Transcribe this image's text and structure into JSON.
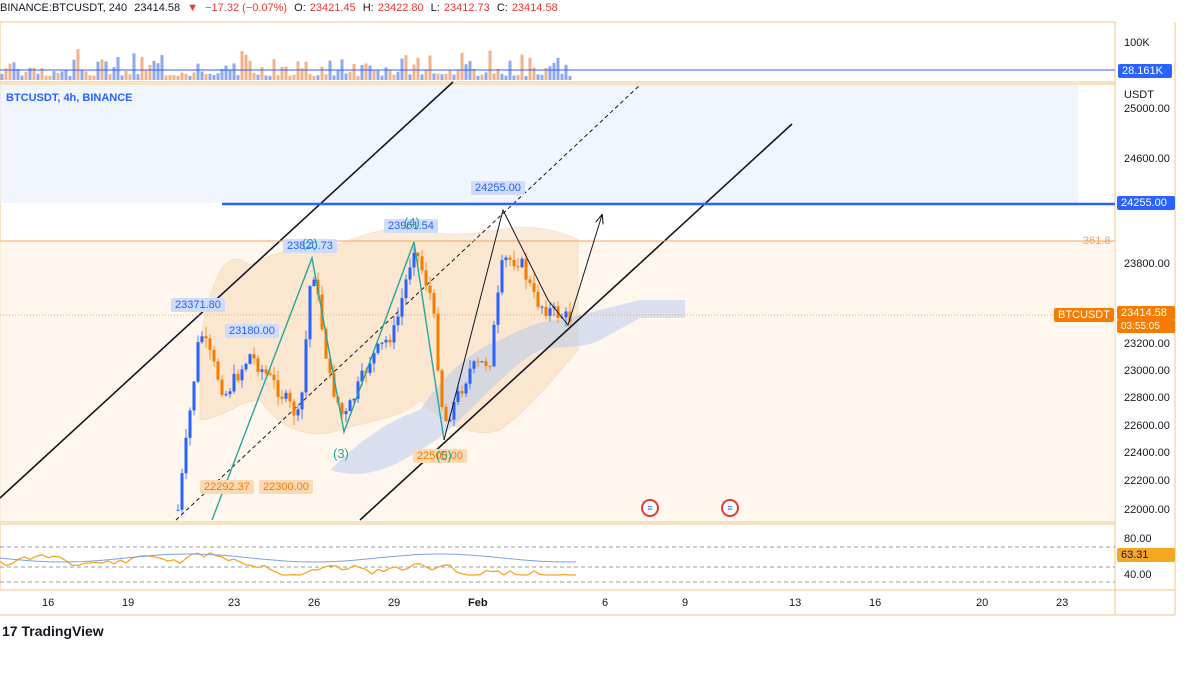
{
  "header": {
    "symbol": "BINANCE:BTCUSDT, 240",
    "price": "23414.58",
    "change_icon": "down-triangle-icon",
    "change": "−17.32 (−0.07%)",
    "o_label": "O:",
    "o_value": "23421.45",
    "h_label": "H:",
    "h_value": "23422.80",
    "l_label": "L:",
    "l_value": "23412.73",
    "c_label": "C:",
    "c_value": "23414.58"
  },
  "volume_pane": {
    "axis_label": "100K",
    "current": "28.161K"
  },
  "main_pane": {
    "legend": "BTCUSDT, 4h, BINANCE",
    "currency": "USDT",
    "price_ticks": [
      "25000.00",
      "24600.00",
      "24200.00",
      "23800.00",
      "23200.00",
      "23000.00",
      "22800.00",
      "22600.00",
      "22400.00",
      "22200.00",
      "22000.00"
    ],
    "resistance_label": "24255.00",
    "fib_label": "361.8",
    "symbol_tag": "BTCUSDT",
    "last_price": "23414.58",
    "countdown": "03:55:05",
    "annotations": {
      "high_b": "24255.00",
      "peak_2": "23820.73",
      "peak_4": "23961.54",
      "peak_1": "23371.80",
      "level_23180": "23180.00",
      "low_1": "22292.37",
      "low_2": "22300.00",
      "low_5": "22500.00",
      "wave_2": "(2)",
      "wave_3": "(3)",
      "wave_4": "(4)",
      "wave_5": "(5)"
    },
    "event_icons": [
      "us-flag-event-icon",
      "us-flag-event-icon"
    ]
  },
  "rsi_pane": {
    "ticks": [
      "80.00",
      "40.00"
    ],
    "value": "63.31"
  },
  "x_axis": {
    "labels": [
      "16",
      "19",
      "23",
      "26",
      "29",
      "Feb",
      "6",
      "9",
      "13",
      "16",
      "20",
      "23"
    ]
  },
  "brand": "TradingView",
  "colors": {
    "blue": "#2962ff",
    "orange": "#f7a35c",
    "up": "#2962ff",
    "down": "#f57c00",
    "rsi": "#f5a623"
  },
  "chart_data": {
    "type": "candlestick",
    "title": "BTCUSDT, 4h, BINANCE",
    "ylabel": "USDT",
    "ylim": [
      21900,
      25100
    ],
    "x": [
      "Jan 16",
      "Jan 19",
      "Jan 23",
      "Jan 26",
      "Jan 29",
      "Feb",
      "Feb 6",
      "Feb 9",
      "Feb 13",
      "Feb 16",
      "Feb 20",
      "Feb 23"
    ],
    "horizontal_levels": [
      24255.0,
      23960.0,
      23414.58
    ],
    "wave_points": [
      {
        "label": "(2)",
        "price": 23820.73
      },
      {
        "label": "(3)",
        "price": 22540
      },
      {
        "label": "(4)",
        "price": 23961.54
      },
      {
        "label": "(5)",
        "price": 22500.0
      }
    ],
    "series": [
      {
        "name": "RSI",
        "last": 63.31,
        "levels": [
          80,
          40
        ]
      },
      {
        "name": "Volume",
        "last": "28.161K",
        "axis": "100K"
      }
    ]
  }
}
